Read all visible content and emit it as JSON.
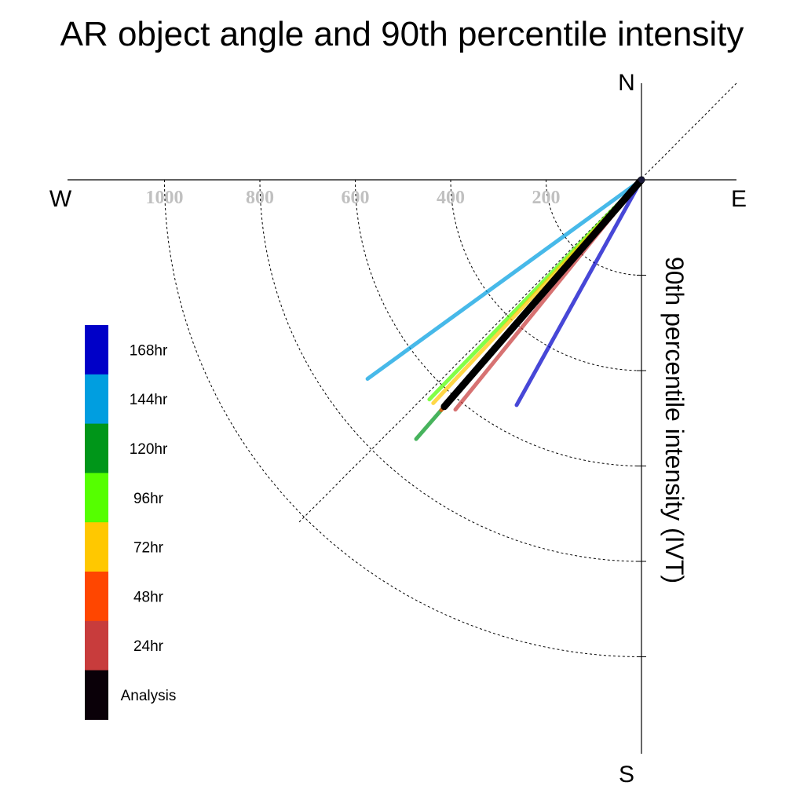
{
  "chart_data": {
    "type": "polar-vector",
    "title": "AR object angle and 90th percentile intensity",
    "ylabel": "90th percentile intensity (IVT)",
    "compass": {
      "north": "N",
      "south": "S",
      "east": "E",
      "west": "W"
    },
    "radial_ticks": [
      200,
      400,
      600,
      800,
      1000
    ],
    "rlim": [
      0,
      1200
    ],
    "series": [
      {
        "name": "168hr",
        "angle_deg": 209,
        "value": 540,
        "color": "#0000c8"
      },
      {
        "name": "144hr",
        "angle_deg": 234,
        "value": 710,
        "color": "#009ee0"
      },
      {
        "name": "120hr",
        "angle_deg": 221,
        "value": 720,
        "color": "#00961e"
      },
      {
        "name": "96hr",
        "angle_deg": 224,
        "value": 640,
        "color": "#50ff00"
      },
      {
        "name": "72hr",
        "angle_deg": 223,
        "value": 640,
        "color": "#ffc800"
      },
      {
        "name": "48hr",
        "angle_deg": 221,
        "value": 640,
        "color": "#ff4600"
      },
      {
        "name": "24hr",
        "angle_deg": 219,
        "value": 620,
        "color": "#c83c3c"
      },
      {
        "name": "Analysis",
        "angle_deg": 221,
        "value": 630,
        "color": "#000000"
      }
    ],
    "legend": [
      "168hr",
      "144hr",
      "120hr",
      "96hr",
      "72hr",
      "48hr",
      "24hr",
      "Analysis"
    ],
    "legend_colors": [
      "#0000c8",
      "#009ee0",
      "#009619",
      "#55ff00",
      "#ffc800",
      "#ff4600",
      "#c83c3c",
      "#0a0008"
    ],
    "grid": true,
    "reference_line": "diagonal dotted line through origin at 45°"
  }
}
